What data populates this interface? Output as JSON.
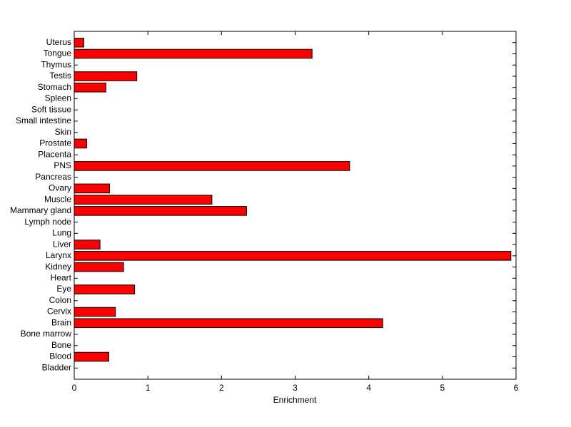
{
  "chart_data": {
    "type": "barh",
    "x_label": "Enrichment",
    "categories": [
      "Bladder",
      "Blood",
      "Bone",
      "Bone marrow",
      "Brain",
      "Cervix",
      "Colon",
      "Eye",
      "Heart",
      "Kidney",
      "Larynx",
      "Liver",
      "Lung",
      "Lymph node",
      "Mammary gland",
      "Muscle",
      "Ovary",
      "Pancreas",
      "PNS",
      "Placenta",
      "Prostate",
      "Skin",
      "Small intestine",
      "Soft tissue",
      "Spleen",
      "Stomach",
      "Testis",
      "Thymus",
      "Tongue",
      "Uterus"
    ],
    "values": [
      0,
      0.47,
      0,
      0,
      4.19,
      0.56,
      0,
      0.82,
      0,
      0.67,
      5.93,
      0.35,
      0,
      0,
      2.34,
      1.87,
      0.48,
      0,
      3.74,
      0,
      0.17,
      0,
      0,
      0,
      0,
      0.43,
      0.85,
      0,
      3.23,
      0.13
    ],
    "color": "#ff0000",
    "xlim": [
      0,
      6
    ],
    "xticks": [
      0,
      1,
      2,
      3,
      4,
      5,
      6
    ]
  }
}
